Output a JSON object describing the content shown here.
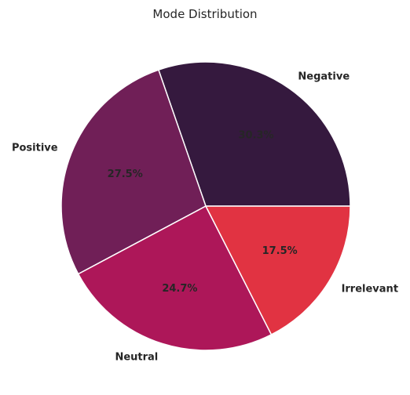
{
  "chart_data": {
    "type": "pie",
    "title": "Mode Distribution",
    "labels": [
      "Negative",
      "Positive",
      "Neutral",
      "Irrelevant"
    ],
    "values": [
      30.3,
      27.5,
      24.7,
      17.5
    ],
    "value_labels": [
      "30.3%",
      "27.5%",
      "24.7%",
      "17.5%"
    ],
    "colors": [
      "#35193e",
      "#701f57",
      "#ad1759",
      "#e13342"
    ],
    "start_angle_deg": 0,
    "direction": "counterclockwise",
    "legend": "none"
  }
}
